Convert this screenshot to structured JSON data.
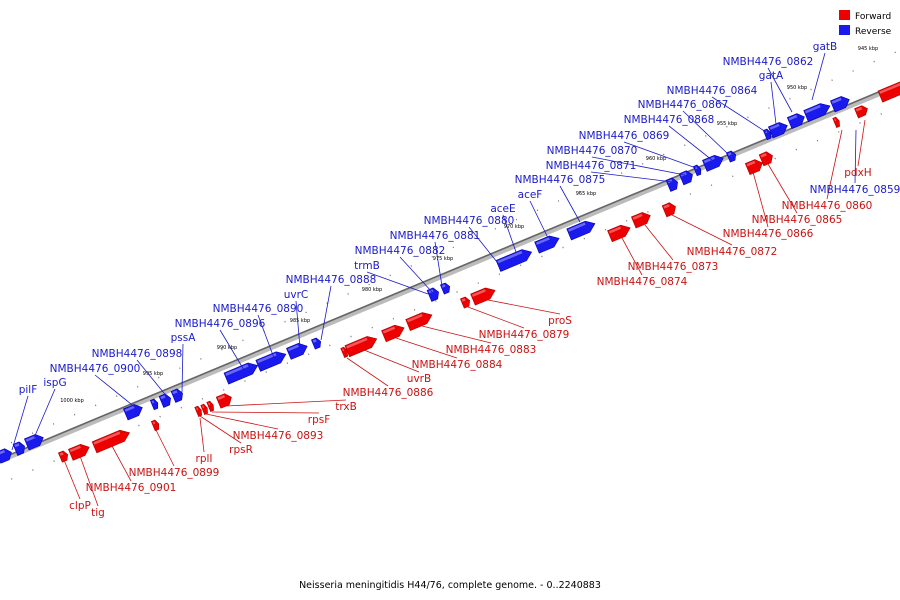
{
  "caption": "Neisseria meningitidis H44/76, complete genome. - 0..2240883",
  "colors": {
    "forward": "#ee0000",
    "reverse": "#1a1aee",
    "axis": "#999999"
  },
  "legend": [
    {
      "label": "Forward",
      "color": "#ee0000"
    },
    {
      "label": "Reverse",
      "color": "#1a1aee"
    }
  ],
  "ticks": [
    "945 kbp",
    "950 kbp",
    "955 kbp",
    "960 kbp",
    "965 kbp",
    "970 kbp",
    "975 kbp",
    "980 kbp",
    "985 kbp",
    "990 kbp",
    "995 kbp",
    "1000 kbp"
  ],
  "labels_reverse": [
    "gatB",
    "NMBH4476_0862",
    "gatA",
    "NMBH4476_0864",
    "NMBH4476_0867",
    "NMBH4476_0868",
    "NMBH4476_0869",
    "NMBH4476_0870",
    "NMBH4476_0871",
    "NMBH4476_0875",
    "aceF",
    "aceE",
    "NMBH4476_0880",
    "NMBH4476_0881",
    "NMBH4476_0882",
    "trmB",
    "NMBH4476_0888",
    "uvrC",
    "NMBH4476_0890",
    "NMBH4476_0896",
    "pssA",
    "NMBH4476_0898",
    "NMBH4476_0900",
    "ispG",
    "pilF",
    "NMBH4476_0859"
  ],
  "labels_forward": [
    "pdxH",
    "NMBH4476_0860",
    "NMBH4476_0865",
    "NMBH4476_0866",
    "NMBH4476_0872",
    "NMBH4476_0873",
    "NMBH4476_0874",
    "proS",
    "NMBH4476_0879",
    "NMBH4476_0883",
    "NMBH4476_0884",
    "uvrB",
    "NMBH4476_0886",
    "trxB",
    "rpsF",
    "NMBH4476_0893",
    "rplI",
    "rpsR",
    "NMBH4476_0899",
    "NMBH4476_0901",
    "clpP",
    "tig"
  ]
}
